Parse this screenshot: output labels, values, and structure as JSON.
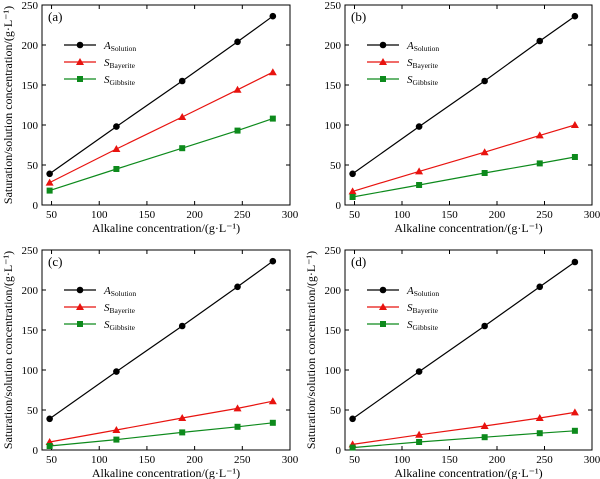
{
  "chart_data": [
    {
      "type": "line",
      "panel_label": "(a)",
      "xlabel": "Alkaline concentration/(g·L⁻¹)",
      "ylabel": "Saturation/solution concentration/(g·L⁻¹)",
      "xlim": [
        40,
        300
      ],
      "ylim": [
        0,
        250
      ],
      "xticks": [
        50,
        100,
        150,
        200,
        250,
        300
      ],
      "yticks": [
        0,
        50,
        100,
        150,
        200,
        250
      ],
      "legend_position": "top-left",
      "x": [
        48,
        118,
        187,
        245,
        282
      ],
      "series": [
        {
          "name_main": "A",
          "name_sub": "Solution",
          "color": "#000000",
          "marker": "circle",
          "values": [
            39,
            98,
            155,
            204,
            236
          ]
        },
        {
          "name_main": "S",
          "name_sub": "Bayerite",
          "color": "#e8130f",
          "marker": "triangle",
          "values": [
            28,
            70,
            110,
            144,
            166
          ]
        },
        {
          "name_main": "S",
          "name_sub": "Gibbsite",
          "color": "#0d8a1c",
          "marker": "square",
          "values": [
            18,
            45,
            71,
            93,
            108
          ]
        }
      ]
    },
    {
      "type": "line",
      "panel_label": "(b)",
      "xlabel": "Alkaline concentration/(g·L⁻¹)",
      "ylabel": "",
      "xlim": [
        40,
        300
      ],
      "ylim": [
        0,
        250
      ],
      "xticks": [
        50,
        100,
        150,
        200,
        250,
        300
      ],
      "yticks": [
        0,
        50,
        100,
        150,
        200,
        250
      ],
      "legend_position": "top-left",
      "x": [
        48,
        118,
        187,
        245,
        282
      ],
      "series": [
        {
          "name_main": "A",
          "name_sub": "Solution",
          "color": "#000000",
          "marker": "circle",
          "values": [
            39,
            98,
            155,
            205,
            236
          ]
        },
        {
          "name_main": "S",
          "name_sub": "Bayerite",
          "color": "#e8130f",
          "marker": "triangle",
          "values": [
            17,
            42,
            66,
            87,
            100
          ]
        },
        {
          "name_main": "S",
          "name_sub": "Gibbsite",
          "color": "#0d8a1c",
          "marker": "square",
          "values": [
            10,
            25,
            40,
            52,
            60
          ]
        }
      ]
    },
    {
      "type": "line",
      "panel_label": "(c)",
      "xlabel": "Alkaline concentration/(g·L⁻¹)",
      "ylabel": "Saturation/solution concentration/(g·L⁻¹)",
      "xlim": [
        40,
        300
      ],
      "ylim": [
        0,
        250
      ],
      "xticks": [
        50,
        100,
        150,
        200,
        250,
        300
      ],
      "yticks": [
        0,
        50,
        100,
        150,
        200,
        250
      ],
      "legend_position": "top-left",
      "x": [
        48,
        118,
        187,
        245,
        282
      ],
      "series": [
        {
          "name_main": "A",
          "name_sub": "Solution",
          "color": "#000000",
          "marker": "circle",
          "values": [
            39,
            98,
            155,
            204,
            236
          ]
        },
        {
          "name_main": "S",
          "name_sub": "Bayerite",
          "color": "#e8130f",
          "marker": "triangle",
          "values": [
            10,
            25,
            40,
            52,
            61
          ]
        },
        {
          "name_main": "S",
          "name_sub": "Gibbsite",
          "color": "#0d8a1c",
          "marker": "square",
          "values": [
            5,
            13,
            22,
            29,
            34
          ]
        }
      ]
    },
    {
      "type": "line",
      "panel_label": "(d)",
      "xlabel": "Alkaline concentration/(g·L⁻¹)",
      "ylabel": "Saturation/solution concentration/(g·L⁻¹)",
      "xlim": [
        40,
        300
      ],
      "ylim": [
        0,
        250
      ],
      "xticks": [
        50,
        100,
        150,
        200,
        250,
        300
      ],
      "yticks": [
        0,
        50,
        100,
        150,
        200,
        250
      ],
      "legend_position": "top-left",
      "x": [
        48,
        118,
        187,
        245,
        282
      ],
      "series": [
        {
          "name_main": "A",
          "name_sub": "Solution",
          "color": "#000000",
          "marker": "circle",
          "values": [
            39,
            98,
            155,
            204,
            235
          ]
        },
        {
          "name_main": "S",
          "name_sub": "Bayerite",
          "color": "#e8130f",
          "marker": "triangle",
          "values": [
            7,
            19,
            30,
            40,
            47
          ]
        },
        {
          "name_main": "S",
          "name_sub": "Gibbsite",
          "color": "#0d8a1c",
          "marker": "square",
          "values": [
            3,
            10,
            16,
            21,
            24
          ]
        }
      ]
    }
  ]
}
